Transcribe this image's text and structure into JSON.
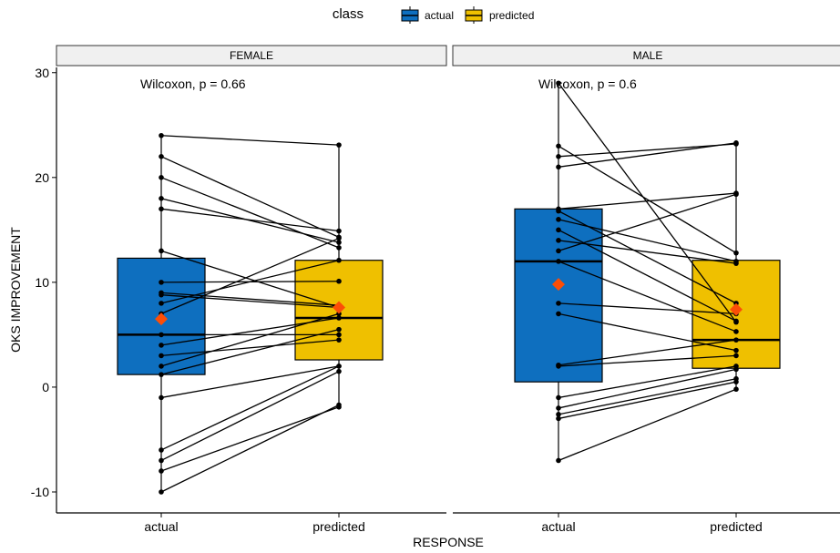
{
  "legend": {
    "title": "class",
    "items": [
      {
        "label": "actual",
        "color": "#0E6FBF"
      },
      {
        "label": "predicted",
        "color": "#EFC000"
      }
    ]
  },
  "chart_data": {
    "type": "box",
    "xlabel": "RESPONSE",
    "ylabel": "OKS IMPROVEMENT",
    "ylim": [
      -12,
      30.5
    ],
    "yticks": [
      -10,
      0,
      10,
      20,
      30
    ],
    "categories": [
      "actual",
      "predicted"
    ],
    "mean_marker_color": "#FC4E07",
    "panels": [
      {
        "label": "FEMALE",
        "test_label": "Wilcoxon, p = 0.66",
        "box": {
          "actual": {
            "q1": 1.2,
            "median": 5.0,
            "q3": 12.3,
            "whisker_low": -10,
            "whisker_high": 24,
            "mean": 6.5
          },
          "predicted": {
            "q1": 2.6,
            "median": 6.6,
            "q3": 12.1,
            "whisker_low": -2,
            "whisker_high": 23.1,
            "mean": 7.6
          }
        },
        "pairs": [
          [
            24,
            23.1
          ],
          [
            22,
            14.3
          ],
          [
            20,
            13.3
          ],
          [
            18,
            13.8
          ],
          [
            17,
            14.9
          ],
          [
            13,
            7.6
          ],
          [
            10,
            10.1
          ],
          [
            9,
            7.8
          ],
          [
            8.8,
            7.6
          ],
          [
            8,
            12.1
          ],
          [
            7,
            14.2
          ],
          [
            5,
            5.0
          ],
          [
            4,
            6.6
          ],
          [
            3,
            4.5
          ],
          [
            2,
            7.0
          ],
          [
            1.2,
            5.5
          ],
          [
            -1,
            2.0
          ],
          [
            -6,
            2.0
          ],
          [
            -7,
            1.5
          ],
          [
            -8,
            -1.9
          ],
          [
            -10,
            -1.7
          ]
        ]
      },
      {
        "label": "MALE",
        "test_label": "Wilcoxon, p = 0.6",
        "box": {
          "actual": {
            "q1": 0.5,
            "median": 12.0,
            "q3": 17.0,
            "whisker_low": -7,
            "whisker_high": 29,
            "mean": 9.8
          },
          "predicted": {
            "q1": 1.8,
            "median": 4.5,
            "q3": 12.1,
            "whisker_low": -0.2,
            "whisker_high": 23.2,
            "mean": 7.4
          }
        },
        "pairs": [
          [
            29,
            6.2
          ],
          [
            23,
            12.8
          ],
          [
            22,
            23.2
          ],
          [
            21,
            23.3
          ],
          [
            17,
            18.5
          ],
          [
            16.8,
            8.0
          ],
          [
            16,
            12.0
          ],
          [
            15,
            6.3
          ],
          [
            14,
            11.8
          ],
          [
            13,
            18.4
          ],
          [
            12,
            5.3
          ],
          [
            8,
            7.0
          ],
          [
            7,
            3.5
          ],
          [
            2,
            3.0
          ],
          [
            2.1,
            4.5
          ],
          [
            -1,
            2.0
          ],
          [
            -2,
            1.7
          ],
          [
            -2.6,
            0.8
          ],
          [
            -3,
            0.5
          ],
          [
            -7,
            -0.2
          ]
        ]
      }
    ]
  }
}
